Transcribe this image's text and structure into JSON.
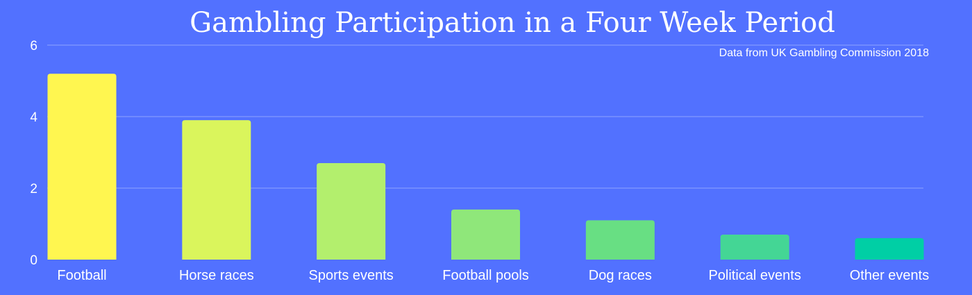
{
  "chart_data": {
    "type": "bar",
    "title": "Gambling Participation in a Four Week Period",
    "subtitle": "Data from UK Gambling Commission 2018",
    "xlabel": "",
    "ylabel": "",
    "categories": [
      "Football",
      "Horse races",
      "Sports events",
      "Football pools",
      "Dog races",
      "Political events",
      "Other events"
    ],
    "values": [
      5.2,
      3.9,
      2.7,
      1.4,
      1.1,
      0.7,
      0.6
    ],
    "ylim": [
      0,
      6
    ],
    "yticks": [
      "0",
      "2",
      "4",
      "6"
    ],
    "grid": true,
    "legend": "none",
    "colors": [
      "#fff650",
      "#daf55c",
      "#b3ef6d",
      "#8fe77a",
      "#68df83",
      "#44d695",
      "#00cfa5"
    ],
    "background": "#5271ff"
  }
}
